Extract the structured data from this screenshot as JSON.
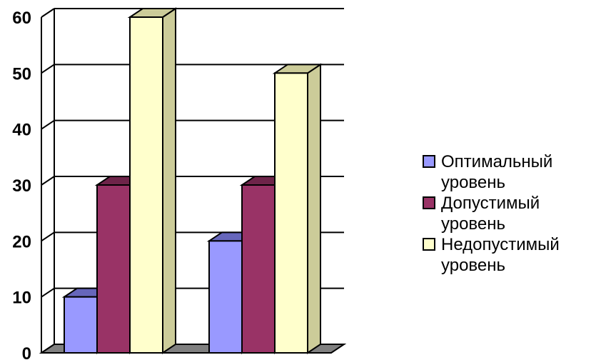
{
  "chart_data": {
    "type": "bar",
    "categories": [
      "",
      ""
    ],
    "series": [
      {
        "name": "Оптимальный уровень",
        "values": [
          10,
          20
        ],
        "color": "#9999ff",
        "dark": "#6666bb"
      },
      {
        "name": "Допустимый уровень",
        "values": [
          30,
          30
        ],
        "color": "#993366",
        "dark": "#6e2449"
      },
      {
        "name": "Недопустимый уровень",
        "values": [
          60,
          50
        ],
        "color": "#ffffcc",
        "dark": "#cccc99"
      }
    ],
    "ylim": [
      0,
      60
    ],
    "yticks": [
      "0",
      "10",
      "20",
      "30",
      "40",
      "50",
      "60"
    ],
    "grid": true,
    "legend": "right",
    "title": "",
    "xlabel": "",
    "ylabel": ""
  }
}
